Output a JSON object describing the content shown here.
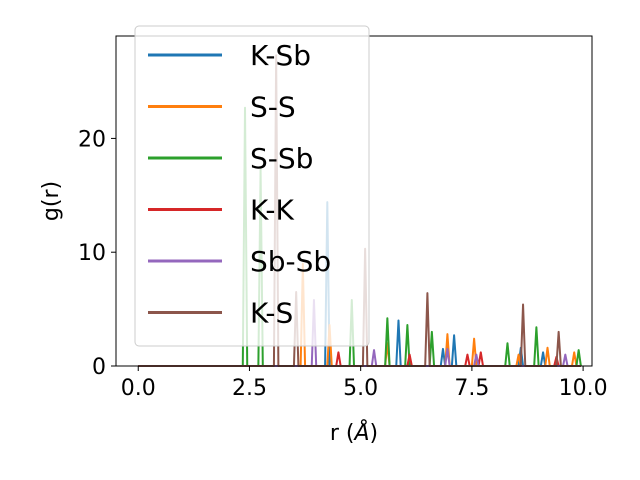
{
  "chart_data": {
    "type": "line",
    "title": "",
    "xlabel": "r (",
    "xlabel_unit": "Å",
    "xlabel_close": ")",
    "ylabel": "g(r)",
    "xlim": [
      -0.5,
      10.2
    ],
    "ylim": [
      0,
      29
    ],
    "xticks": [
      0.0,
      2.5,
      5.0,
      7.5,
      10.0
    ],
    "xtick_labels": [
      "0.0",
      "2.5",
      "5.0",
      "7.5",
      "10.0"
    ],
    "yticks": [
      0,
      10,
      20
    ],
    "ytick_labels": [
      "0",
      "10",
      "20"
    ],
    "grid": false,
    "legend_position": "upper-left",
    "series": [
      {
        "name": "K-Sb",
        "color": "#1f77b4",
        "peaks": [
          [
            4.25,
            14.4
          ],
          [
            5.85,
            4.0
          ],
          [
            6.85,
            1.5
          ],
          [
            7.1,
            2.7
          ],
          [
            8.6,
            1.6
          ],
          [
            9.1,
            1.2
          ]
        ]
      },
      {
        "name": "S-S",
        "color": "#ff7f0e",
        "peaks": [
          [
            3.7,
            9.0
          ],
          [
            4.3,
            3.6
          ],
          [
            5.6,
            2.0
          ],
          [
            6.95,
            2.8
          ],
          [
            7.55,
            2.4
          ],
          [
            8.55,
            1.0
          ],
          [
            9.2,
            1.6
          ],
          [
            9.8,
            1.2
          ]
        ]
      },
      {
        "name": "S-Sb",
        "color": "#2ca02c",
        "peaks": [
          [
            2.4,
            22.7
          ],
          [
            2.75,
            17.3
          ],
          [
            4.8,
            5.8
          ],
          [
            5.6,
            4.2
          ],
          [
            6.05,
            3.6
          ],
          [
            6.6,
            3.0
          ],
          [
            8.3,
            2.0
          ],
          [
            8.95,
            3.4
          ],
          [
            9.9,
            1.4
          ]
        ]
      },
      {
        "name": "K-K",
        "color": "#d62728",
        "peaks": [
          [
            4.5,
            1.2
          ],
          [
            6.1,
            1.0
          ],
          [
            7.4,
            1.0
          ],
          [
            7.7,
            1.2
          ],
          [
            9.4,
            0.8
          ]
        ]
      },
      {
        "name": "Sb-Sb",
        "color": "#9467bd",
        "peaks": [
          [
            3.95,
            5.8
          ],
          [
            5.3,
            1.4
          ],
          [
            6.95,
            1.5
          ],
          [
            7.6,
            1.0
          ],
          [
            9.6,
            1.0
          ]
        ]
      },
      {
        "name": "K-S",
        "color": "#8c564b",
        "peaks": [
          [
            3.1,
            27.3
          ],
          [
            3.55,
            6.5
          ],
          [
            5.1,
            10.3
          ],
          [
            6.5,
            6.4
          ],
          [
            8.65,
            5.4
          ],
          [
            9.45,
            3.0
          ]
        ]
      }
    ]
  }
}
